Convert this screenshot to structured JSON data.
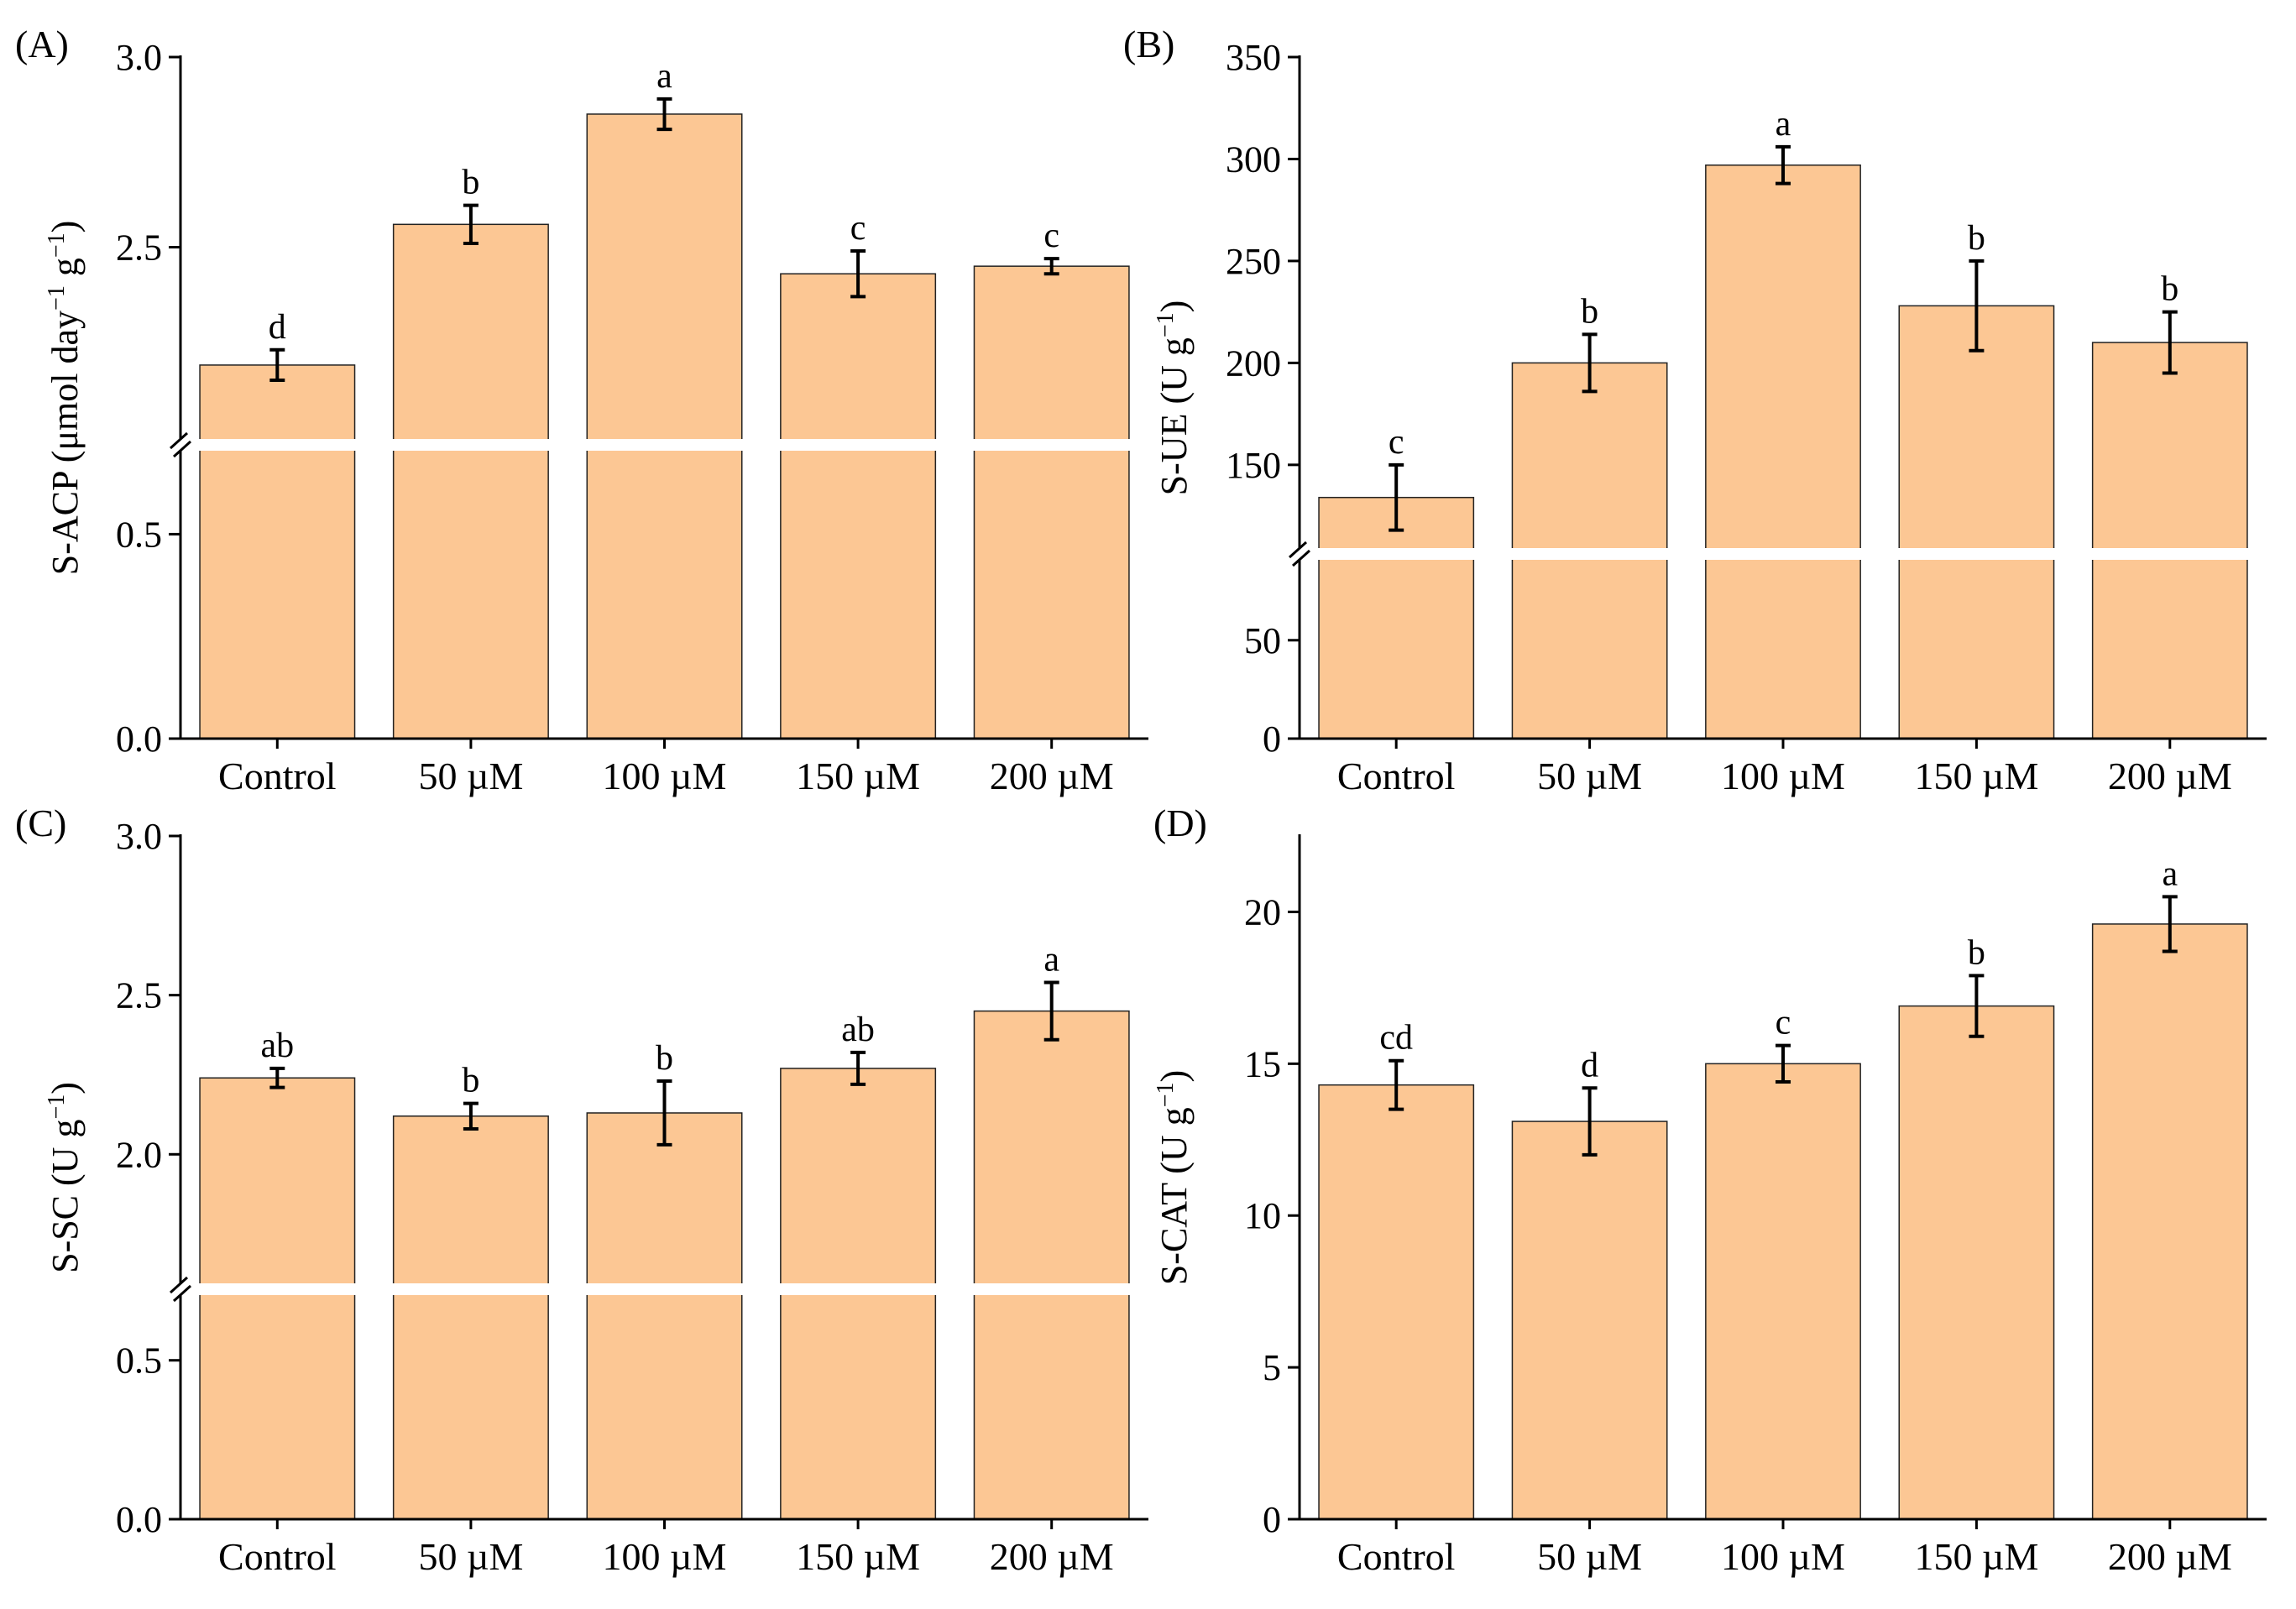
{
  "figure": {
    "bar_color": "#FCC794",
    "categories": [
      "Control",
      "50 µM",
      "100 µM",
      "150 µM",
      "200 µM"
    ]
  },
  "chart_data": [
    {
      "type": "bar",
      "panel_label": "(A)",
      "ylabel_parts": [
        "S-ACP (μmol day",
        "−1",
        " g",
        "−1",
        ")"
      ],
      "categories": [
        "Control",
        "50 µM",
        "100 µM",
        "150 µM",
        "200 µM"
      ],
      "values": [
        2.19,
        2.56,
        2.85,
        2.43,
        2.45
      ],
      "errors": [
        0.04,
        0.05,
        0.04,
        0.06,
        0.02
      ],
      "letters": [
        "d",
        "b",
        "a",
        "c",
        "c"
      ],
      "axis_break": {
        "lower": [
          0,
          0.7
        ],
        "upper": [
          2.0,
          3.0
        ]
      },
      "yticks": [
        0.0,
        0.5,
        2.5,
        3.0
      ],
      "ytick_labels": [
        "0.0",
        "0.5",
        "2.5",
        "3.0"
      ]
    },
    {
      "type": "bar",
      "panel_label": "(B)",
      "ylabel_parts": [
        "S-UE (U g",
        "−1",
        ")"
      ],
      "categories": [
        "Control",
        "50 µM",
        "100 µM",
        "150 µM",
        "200 µM"
      ],
      "values": [
        134,
        200,
        297,
        228,
        210
      ],
      "errors": [
        16,
        14,
        9,
        22,
        15
      ],
      "letters": [
        "c",
        "b",
        "a",
        "b",
        "b"
      ],
      "axis_break": {
        "lower": [
          0,
          90
        ],
        "upper": [
          110,
          350
        ]
      },
      "yticks": [
        0,
        50,
        150,
        200,
        250,
        300,
        350
      ],
      "ytick_labels": [
        "0",
        "50",
        "150",
        "200",
        "250",
        "300",
        "350"
      ]
    },
    {
      "type": "bar",
      "panel_label": "(C)",
      "ylabel_parts": [
        "S-SC (U g",
        "−1",
        ")"
      ],
      "categories": [
        "Control",
        "50 µM",
        "100 µM",
        "150 µM",
        "200 µM"
      ],
      "values": [
        2.24,
        2.12,
        2.13,
        2.27,
        2.45
      ],
      "errors": [
        0.03,
        0.04,
        0.1,
        0.05,
        0.09
      ],
      "letters": [
        "ab",
        "b",
        "b",
        "ab",
        "a"
      ],
      "axis_break": {
        "lower": [
          0,
          0.7
        ],
        "upper": [
          1.6,
          3.0
        ]
      },
      "yticks": [
        0.0,
        0.5,
        2.0,
        2.5,
        3.0
      ],
      "ytick_labels": [
        "0.0",
        "0.5",
        "2.0",
        "2.5",
        "3.0"
      ]
    },
    {
      "type": "bar",
      "panel_label": "(D)",
      "ylabel_parts": [
        "S-CAT (U g",
        "−1",
        ")"
      ],
      "categories": [
        "Control",
        "50 µM",
        "100 µM",
        "150 µM",
        "200 µM"
      ],
      "values": [
        14.3,
        13.1,
        15.0,
        16.9,
        19.6
      ],
      "errors": [
        0.8,
        1.1,
        0.6,
        1.0,
        0.9
      ],
      "letters": [
        "cd",
        "d",
        "c",
        "b",
        "a"
      ],
      "axis_break": null,
      "ylim": [
        0,
        22.5
      ],
      "yticks": [
        0,
        5,
        10,
        15,
        20
      ],
      "ytick_labels": [
        "0",
        "5",
        "10",
        "15",
        "20"
      ]
    }
  ]
}
